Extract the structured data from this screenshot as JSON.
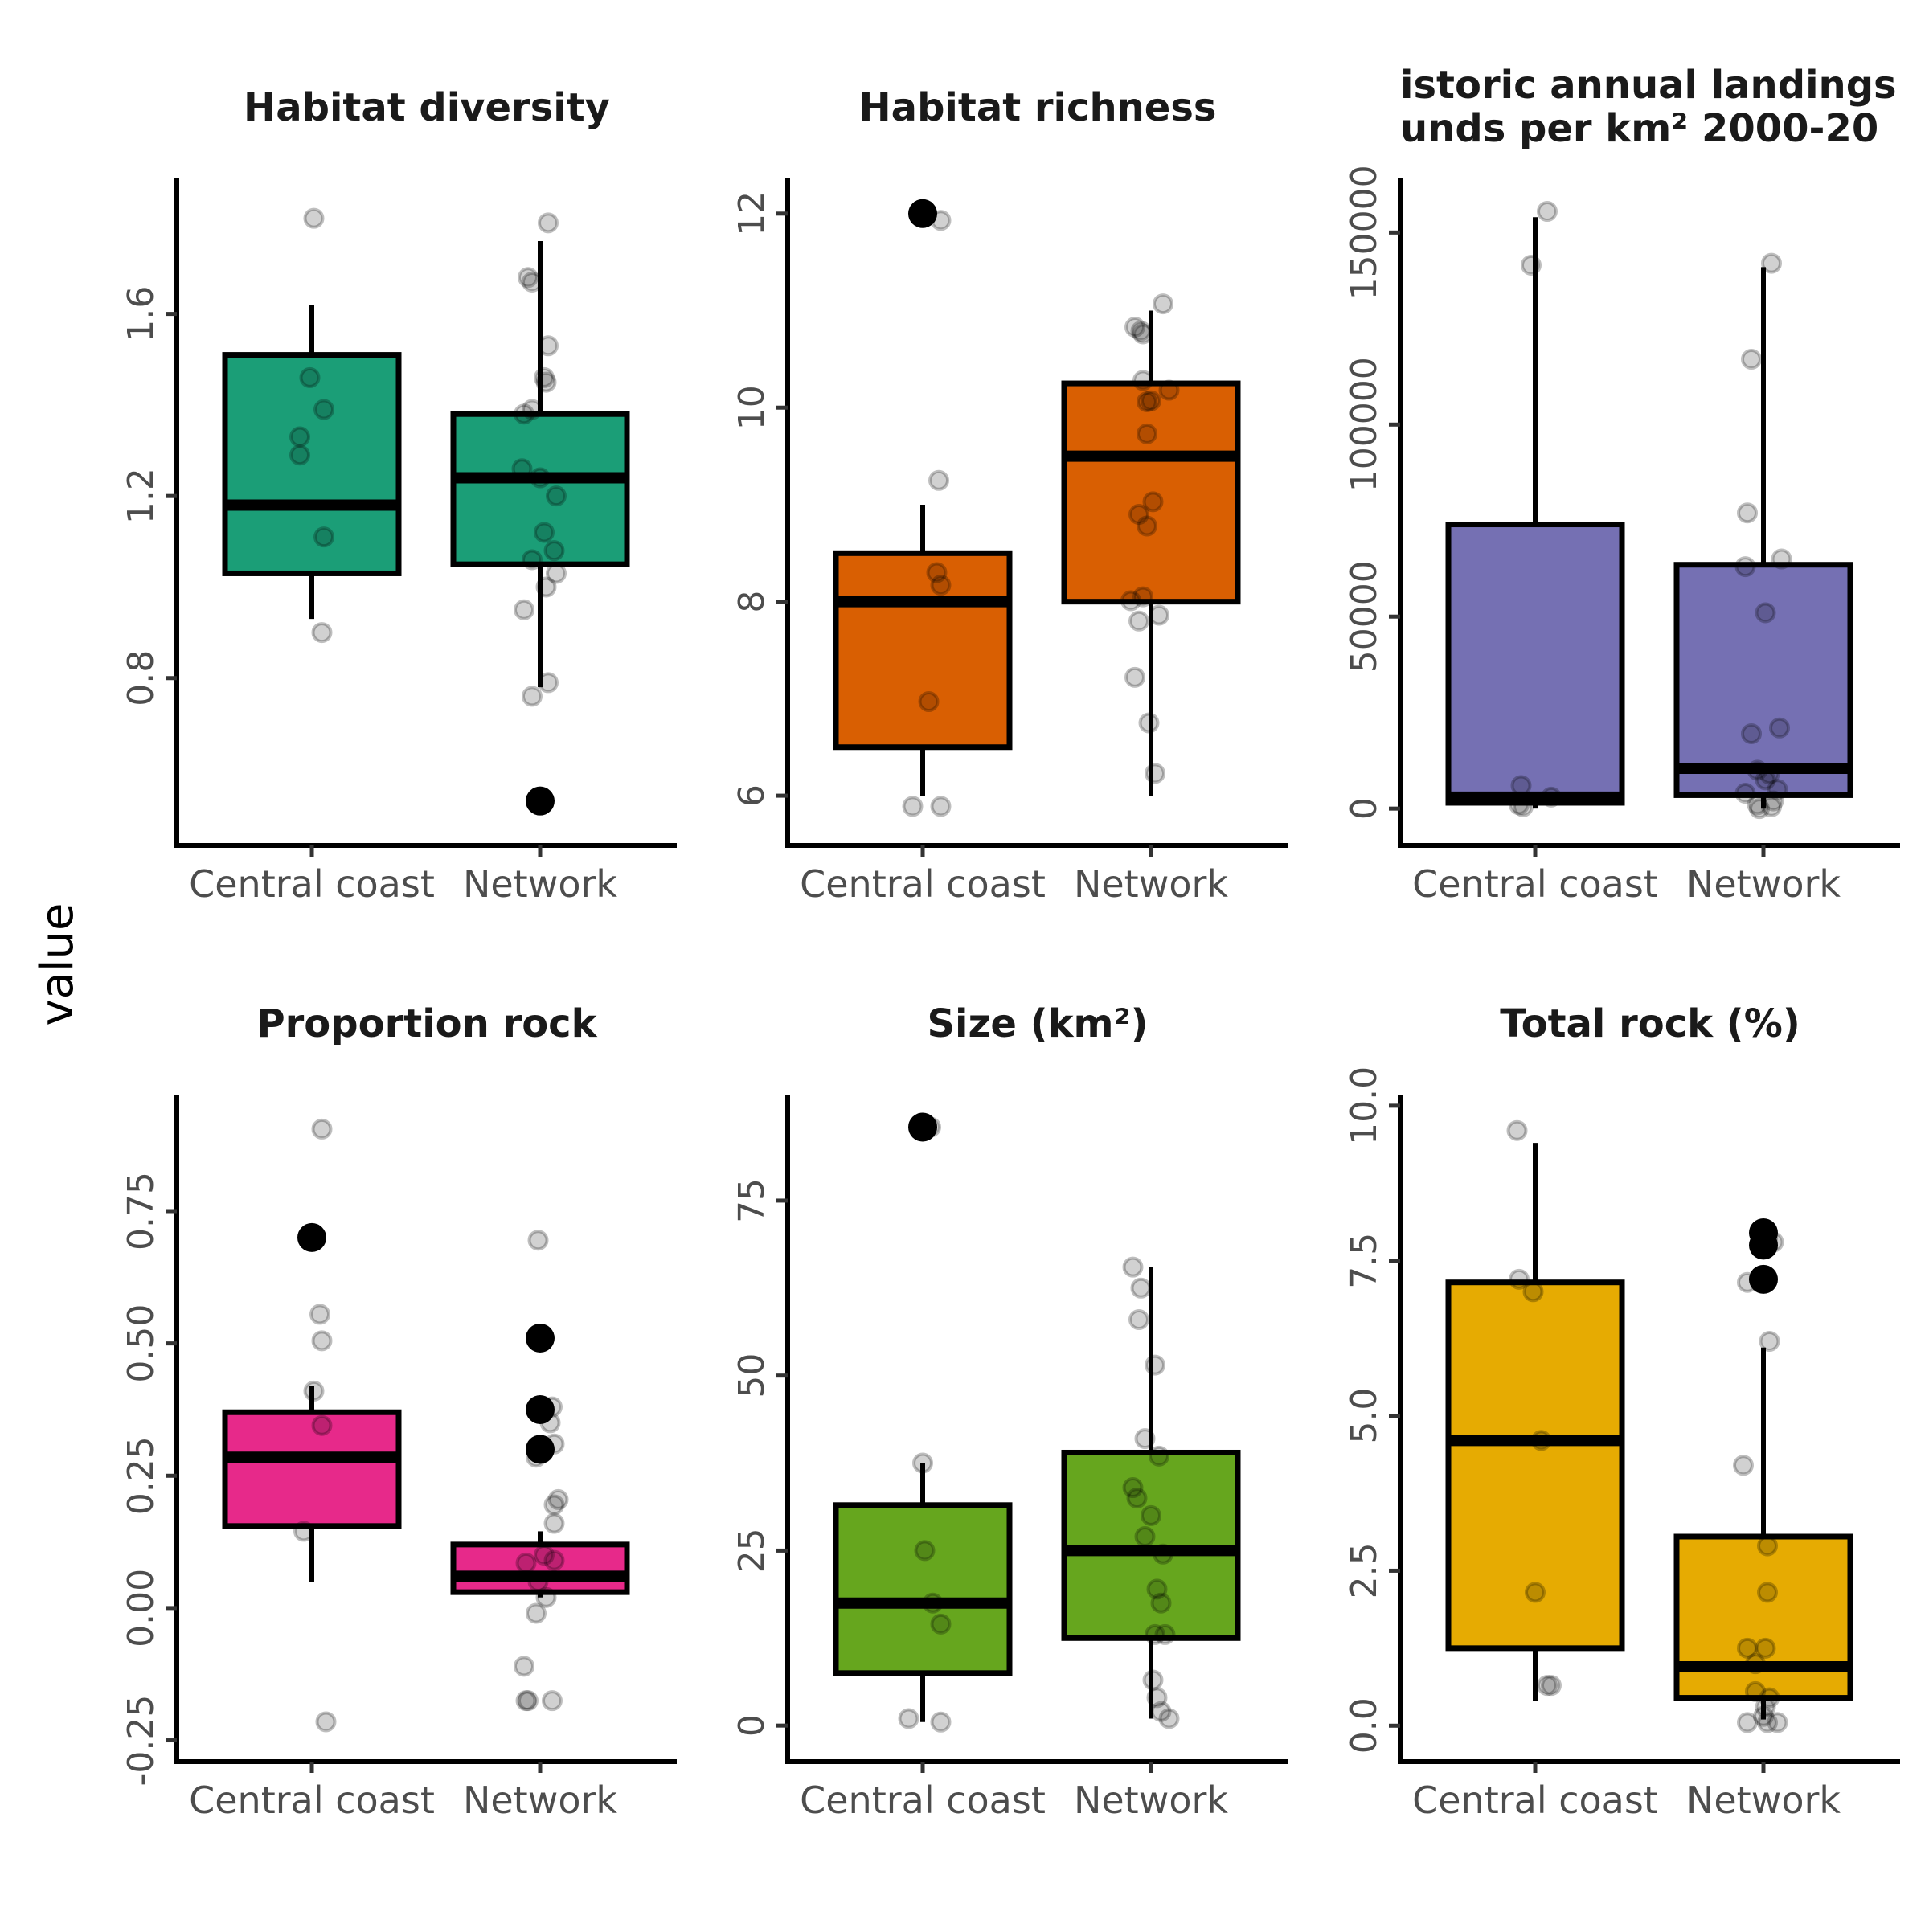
{
  "figure": {
    "ylabel": "value",
    "x_categories": [
      "Central coast",
      "Network"
    ]
  },
  "chart_data": [
    {
      "type": "box",
      "title": "Habitat diversity",
      "color": "#1b9e77",
      "ylim": [
        0.45,
        1.88
      ],
      "ticks": [
        0.8,
        1.2,
        1.6
      ],
      "tick_labels": [
        "0.8",
        "1.2",
        "1.6"
      ],
      "categories": [
        "Central coast",
        "Network"
      ],
      "boxes": [
        {
          "q1": 1.03,
          "median": 1.18,
          "q3": 1.51,
          "whisker_low": 0.93,
          "whisker_high": 1.62,
          "outliers": []
        },
        {
          "q1": 1.05,
          "median": 1.24,
          "q3": 1.38,
          "whisker_low": 0.78,
          "whisker_high": 1.76,
          "outliers": [
            0.53
          ]
        }
      ],
      "points": [
        [
          {
            "x": 0.01,
            "y": 1.81
          },
          {
            "x": -0.01,
            "y": 1.46
          },
          {
            "x": 0.06,
            "y": 1.39
          },
          {
            "x": -0.06,
            "y": 1.33
          },
          {
            "x": -0.06,
            "y": 1.29
          },
          {
            "x": 0.06,
            "y": 1.11
          },
          {
            "x": 0.05,
            "y": 0.9
          }
        ],
        [
          {
            "x": 0.04,
            "y": 1.8
          },
          {
            "x": -0.06,
            "y": 1.68
          },
          {
            "x": -0.04,
            "y": 1.67
          },
          {
            "x": 0.04,
            "y": 1.53
          },
          {
            "x": 0.02,
            "y": 1.46
          },
          {
            "x": 0.03,
            "y": 1.45
          },
          {
            "x": -0.04,
            "y": 1.39
          },
          {
            "x": -0.08,
            "y": 1.38
          },
          {
            "x": -0.09,
            "y": 1.26
          },
          {
            "x": 0.0,
            "y": 1.24
          },
          {
            "x": 0.08,
            "y": 1.2
          },
          {
            "x": 0.02,
            "y": 1.12
          },
          {
            "x": 0.07,
            "y": 1.08
          },
          {
            "x": -0.04,
            "y": 1.06
          },
          {
            "x": 0.08,
            "y": 1.03
          },
          {
            "x": 0.03,
            "y": 1.0
          },
          {
            "x": -0.08,
            "y": 0.95
          },
          {
            "x": 0.04,
            "y": 0.79
          },
          {
            "x": -0.04,
            "y": 0.76
          }
        ]
      ]
    },
    {
      "type": "box",
      "title": "Habitat richness",
      "color": "#d95f02",
      "ylim": [
        5.57,
        12.28
      ],
      "ticks": [
        6,
        8,
        10,
        12
      ],
      "tick_labels": [
        "6",
        "8",
        "10",
        "12"
      ],
      "categories": [
        "Central coast",
        "Network"
      ],
      "boxes": [
        {
          "q1": 6.5,
          "median": 8.0,
          "q3": 8.5,
          "whisker_low": 6.0,
          "whisker_high": 9.0,
          "outliers": [
            12.0
          ]
        },
        {
          "q1": 8.0,
          "median": 9.5,
          "q3": 10.25,
          "whisker_low": 6.0,
          "whisker_high": 11.0,
          "outliers": []
        }
      ],
      "points": [
        [
          {
            "x": 0.09,
            "y": 11.93
          },
          {
            "x": 0.08,
            "y": 9.25
          },
          {
            "x": 0.07,
            "y": 8.3
          },
          {
            "x": 0.09,
            "y": 8.17
          },
          {
            "x": 0.03,
            "y": 6.97
          },
          {
            "x": -0.05,
            "y": 5.89
          },
          {
            "x": 0.09,
            "y": 5.89
          }
        ],
        [
          {
            "x": 0.06,
            "y": 11.07
          },
          {
            "x": -0.08,
            "y": 10.83
          },
          {
            "x": -0.05,
            "y": 10.79
          },
          {
            "x": -0.04,
            "y": 10.76
          },
          {
            "x": -0.04,
            "y": 10.28
          },
          {
            "x": 0.09,
            "y": 10.18
          },
          {
            "x": -0.02,
            "y": 10.06
          },
          {
            "x": 0.0,
            "y": 10.07
          },
          {
            "x": -0.02,
            "y": 9.73
          },
          {
            "x": 0.01,
            "y": 9.03
          },
          {
            "x": -0.06,
            "y": 8.9
          },
          {
            "x": -0.02,
            "y": 8.78
          },
          {
            "x": -0.04,
            "y": 8.05
          },
          {
            "x": -0.1,
            "y": 8.01
          },
          {
            "x": 0.04,
            "y": 7.86
          },
          {
            "x": -0.06,
            "y": 7.8
          },
          {
            "x": -0.08,
            "y": 7.22
          },
          {
            "x": -0.01,
            "y": 6.75
          },
          {
            "x": 0.02,
            "y": 6.23
          }
        ]
      ]
    },
    {
      "type": "box",
      "title": "istoric annual landings\nunds per km² 2000-20",
      "color": "#7570b3",
      "ylim": [
        -7500,
        162000
      ],
      "ticks": [
        0,
        50000,
        100000,
        150000
      ],
      "tick_labels": [
        "0",
        "50000",
        "100000",
        "150000"
      ],
      "categories": [
        "Central coast",
        "Network"
      ],
      "boxes": [
        {
          "q1": 1500,
          "median": 3000,
          "q3": 74000,
          "whisker_low": 0,
          "whisker_high": 154000,
          "outliers": []
        },
        {
          "q1": 3500,
          "median": 10500,
          "q3": 63500,
          "whisker_low": 0,
          "whisker_high": 141000,
          "outliers": []
        }
      ],
      "points": [
        [
          {
            "x": 0.06,
            "y": 155500
          },
          {
            "x": -0.02,
            "y": 141500
          },
          {
            "x": -0.07,
            "y": 6000
          },
          {
            "x": 0.08,
            "y": 3000
          },
          {
            "x": -0.08,
            "y": 1000
          },
          {
            "x": -0.06,
            "y": 500
          }
        ],
        [
          {
            "x": 0.04,
            "y": 142000
          },
          {
            "x": -0.06,
            "y": 117000
          },
          {
            "x": -0.08,
            "y": 77000
          },
          {
            "x": 0.09,
            "y": 65000
          },
          {
            "x": -0.09,
            "y": 63000
          },
          {
            "x": 0.01,
            "y": 51000
          },
          {
            "x": 0.08,
            "y": 21000
          },
          {
            "x": -0.06,
            "y": 19500
          },
          {
            "x": -0.03,
            "y": 10000
          },
          {
            "x": 0.03,
            "y": 9000
          },
          {
            "x": 0.01,
            "y": 7500
          },
          {
            "x": 0.07,
            "y": 5000
          },
          {
            "x": -0.09,
            "y": 4000
          },
          {
            "x": 0.05,
            "y": 2000
          },
          {
            "x": -0.03,
            "y": 1000
          },
          {
            "x": 0.04,
            "y": 500
          },
          {
            "x": -0.02,
            "y": 0
          }
        ]
      ]
    },
    {
      "type": "box",
      "title": "Proportion rock",
      "color": "#e7298a",
      "ylim": [
        -0.275,
        0.955
      ],
      "ticks": [
        -0.25,
        0.0,
        0.25,
        0.5,
        0.75
      ],
      "tick_labels": [
        "-0.25",
        "0.00",
        "0.25",
        "0.50",
        "0.75"
      ],
      "categories": [
        "Central coast",
        "Network"
      ],
      "boxes": [
        {
          "q1": 0.155,
          "median": 0.285,
          "q3": 0.37,
          "whisker_low": 0.05,
          "whisker_high": 0.42,
          "outliers": [
            0.7
          ]
        },
        {
          "q1": 0.03,
          "median": 0.06,
          "q3": 0.12,
          "whisker_low": 0.02,
          "whisker_high": 0.145,
          "outliers": [
            0.51,
            0.375,
            0.3
          ]
        }
      ],
      "points": [
        [
          {
            "x": 0.05,
            "y": 0.905
          },
          {
            "x": 0.04,
            "y": 0.555
          },
          {
            "x": 0.05,
            "y": 0.505
          },
          {
            "x": 0.01,
            "y": 0.41
          },
          {
            "x": 0.05,
            "y": 0.345
          },
          {
            "x": -0.04,
            "y": 0.145
          },
          {
            "x": 0.07,
            "y": -0.215
          }
        ],
        [
          {
            "x": -0.01,
            "y": 0.695
          },
          {
            "x": 0.06,
            "y": 0.38
          },
          {
            "x": 0.05,
            "y": 0.35
          },
          {
            "x": 0.07,
            "y": 0.31
          },
          {
            "x": -0.02,
            "y": 0.285
          },
          {
            "x": 0.09,
            "y": 0.205
          },
          {
            "x": 0.07,
            "y": 0.195
          },
          {
            "x": 0.07,
            "y": 0.16
          },
          {
            "x": 0.02,
            "y": 0.1
          },
          {
            "x": -0.07,
            "y": 0.085
          },
          {
            "x": 0.07,
            "y": 0.09
          },
          {
            "x": -0.01,
            "y": 0.05
          },
          {
            "x": 0.03,
            "y": 0.02
          },
          {
            "x": -0.02,
            "y": -0.01
          },
          {
            "x": -0.08,
            "y": -0.11
          },
          {
            "x": -0.06,
            "y": -0.175
          },
          {
            "x": -0.07,
            "y": -0.175
          },
          {
            "x": 0.06,
            "y": -0.175
          }
        ]
      ]
    },
    {
      "type": "box",
      "title": "Size (km²)",
      "color": "#66a61e",
      "ylim": [
        -4,
        89
      ],
      "ticks": [
        0,
        25,
        50,
        75
      ],
      "tick_labels": [
        "0",
        "25",
        "50",
        "75"
      ],
      "categories": [
        "Central coast",
        "Network"
      ],
      "boxes": [
        {
          "q1": 7.5,
          "median": 17.5,
          "q3": 31.5,
          "whisker_low": 0.5,
          "whisker_high": 37.5,
          "outliers": [
            85.5
          ]
        },
        {
          "q1": 12.5,
          "median": 25.0,
          "q3": 39.0,
          "whisker_low": 1.0,
          "whisker_high": 65.5,
          "outliers": []
        }
      ],
      "points": [
        [
          {
            "x": 0.04,
            "y": 85.5
          },
          {
            "x": 0.0,
            "y": 37.5
          },
          {
            "x": 0.01,
            "y": 25.0
          },
          {
            "x": 0.05,
            "y": 17.5
          },
          {
            "x": 0.09,
            "y": 14.5
          },
          {
            "x": -0.07,
            "y": 1.0
          },
          {
            "x": 0.09,
            "y": 0.5
          }
        ],
        [
          {
            "x": -0.09,
            "y": 65.5
          },
          {
            "x": -0.05,
            "y": 62.5
          },
          {
            "x": -0.06,
            "y": 58.0
          },
          {
            "x": 0.02,
            "y": 51.5
          },
          {
            "x": -0.03,
            "y": 41.0
          },
          {
            "x": 0.04,
            "y": 38.5
          },
          {
            "x": -0.09,
            "y": 34.0
          },
          {
            "x": -0.07,
            "y": 32.5
          },
          {
            "x": 0.0,
            "y": 30.0
          },
          {
            "x": -0.03,
            "y": 27.0
          },
          {
            "x": 0.06,
            "y": 24.5
          },
          {
            "x": 0.03,
            "y": 19.5
          },
          {
            "x": 0.05,
            "y": 17.5
          },
          {
            "x": 0.02,
            "y": 13.0
          },
          {
            "x": 0.07,
            "y": 13.0
          },
          {
            "x": 0.01,
            "y": 6.5
          },
          {
            "x": 0.03,
            "y": 4.0
          },
          {
            "x": 0.05,
            "y": 2.0
          },
          {
            "x": 0.09,
            "y": 1.0
          }
        ]
      ]
    },
    {
      "type": "box",
      "title": "Total rock (%)",
      "color": "#e6ab02",
      "ylim": [
        -0.45,
        10.05
      ],
      "ticks": [
        0.0,
        2.5,
        5.0,
        7.5,
        10.0
      ],
      "tick_labels": [
        "0.0",
        "2.5",
        "5.0",
        "7.5",
        "10.0"
      ],
      "categories": [
        "Central coast",
        "Network"
      ],
      "boxes": [
        {
          "q1": 1.25,
          "median": 4.6,
          "q3": 7.15,
          "whisker_low": 0.4,
          "whisker_high": 9.4,
          "outliers": []
        },
        {
          "q1": 0.45,
          "median": 0.95,
          "q3": 3.05,
          "whisker_low": 0.1,
          "whisker_high": 6.1,
          "outliers": [
            7.95,
            7.75,
            7.2
          ]
        }
      ],
      "points": [
        [
          {
            "x": -0.09,
            "y": 9.6
          },
          {
            "x": -0.08,
            "y": 7.2
          },
          {
            "x": -0.01,
            "y": 7.0
          },
          {
            "x": 0.03,
            "y": 4.6
          },
          {
            "x": 0.0,
            "y": 2.15
          },
          {
            "x": 0.06,
            "y": 0.65
          },
          {
            "x": 0.08,
            "y": 0.65
          }
        ],
        [
          {
            "x": 0.02,
            "y": 7.85
          },
          {
            "x": 0.05,
            "y": 7.8
          },
          {
            "x": -0.08,
            "y": 7.15
          },
          {
            "x": 0.03,
            "y": 6.2
          },
          {
            "x": -0.1,
            "y": 4.2
          },
          {
            "x": 0.02,
            "y": 2.9
          },
          {
            "x": 0.02,
            "y": 2.15
          },
          {
            "x": -0.08,
            "y": 1.25
          },
          {
            "x": 0.01,
            "y": 1.25
          },
          {
            "x": -0.04,
            "y": 1.0
          },
          {
            "x": -0.04,
            "y": 0.55
          },
          {
            "x": 0.03,
            "y": 0.45
          },
          {
            "x": 0.01,
            "y": 0.3
          },
          {
            "x": 0.0,
            "y": 0.15
          },
          {
            "x": -0.08,
            "y": 0.05
          },
          {
            "x": 0.02,
            "y": 0.05
          },
          {
            "x": 0.07,
            "y": 0.05
          }
        ]
      ]
    }
  ]
}
